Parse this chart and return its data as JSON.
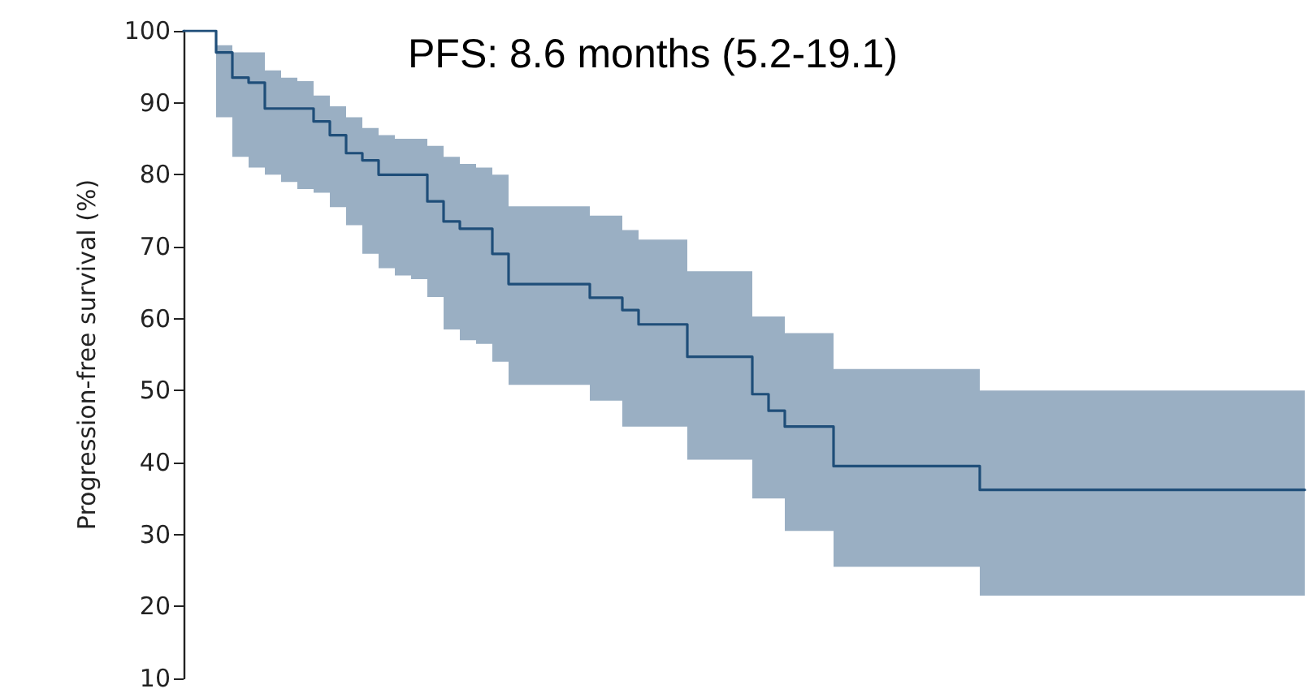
{
  "chart_data": {
    "type": "step",
    "title": "PFS: 8.6 months (5.2-19.1)",
    "ylabel": "Progression-free survival (%)",
    "categories": [
      null,
      null,
      null,
      null,
      null,
      null,
      null,
      null,
      null,
      null,
      null,
      null,
      null,
      null,
      null,
      null,
      null,
      null,
      null,
      null,
      null,
      null,
      null,
      null,
      null,
      null,
      null,
      null,
      null,
      null,
      null,
      null,
      null,
      null,
      null,
      null,
      null,
      null,
      null,
      null,
      null,
      null,
      null,
      null,
      null,
      null,
      null,
      null,
      null,
      null,
      null,
      null,
      null,
      null,
      null,
      null,
      null,
      null,
      null,
      null,
      null,
      null,
      null,
      null,
      null,
      null,
      null,
      null,
      null,
      null
    ],
    "series": [
      {
        "color": "#1f4e79",
        "values": [
          100,
          100,
          97,
          93.5,
          92.8,
          89.2,
          89.2,
          89.2,
          87.4,
          85.5,
          83,
          82,
          80,
          80,
          80,
          76.3,
          73.5,
          72.5,
          72.5,
          69,
          64.8,
          64.8,
          64.8,
          64.8,
          64.8,
          62.9,
          62.9,
          61.2,
          59.2,
          59.2,
          59.2,
          54.7,
          54.7,
          54.7,
          54.7,
          49.5,
          47.2,
          45,
          45,
          45,
          39.5,
          39.5,
          39.5,
          39.5,
          39.5,
          39.5,
          39.5,
          39.5,
          39.5,
          36.2,
          36.2,
          36.2,
          36.2,
          36.2,
          36.2,
          36.2,
          36.2,
          36.2,
          36.2,
          36.2,
          36.2,
          36.2,
          36.2,
          36.2,
          36.2,
          36.2,
          36.2,
          36.2,
          36.2,
          36.2
        ],
        "upper": [
          100,
          100,
          98,
          97,
          97,
          94.5,
          93.5,
          93,
          91,
          89.5,
          88,
          86.5,
          85.5,
          85,
          85,
          84,
          82.5,
          81.5,
          81,
          80,
          75.6,
          75.6,
          75.6,
          75.6,
          75.6,
          74.3,
          74.3,
          72.3,
          71,
          71,
          71,
          66.6,
          66.6,
          66.6,
          66.6,
          60.3,
          60.3,
          58,
          58,
          58,
          53,
          53,
          53,
          53,
          53,
          53,
          53,
          53,
          53,
          50,
          50,
          50,
          50,
          50,
          50,
          50,
          50,
          50,
          50,
          50,
          50,
          50,
          50,
          50,
          50,
          50,
          50,
          50,
          50,
          50
        ],
        "lower": [
          100,
          100,
          88,
          82.5,
          81,
          80,
          79,
          78,
          77.5,
          75.5,
          73,
          69,
          67,
          66,
          65.5,
          63,
          58.5,
          57,
          56.5,
          54,
          50.8,
          50.8,
          50.8,
          50.8,
          50.8,
          48.6,
          48.6,
          45,
          45,
          45,
          45,
          40.4,
          40.4,
          40.4,
          40.4,
          35,
          35,
          30.5,
          30.5,
          30.5,
          25.5,
          25.5,
          25.5,
          25.5,
          25.5,
          25.5,
          25.5,
          25.5,
          25.5,
          21.5,
          21.5,
          21.5,
          21.5,
          21.5,
          21.5,
          21.5,
          21.5,
          21.5,
          21.5,
          21.5,
          21.5,
          21.5,
          21.5,
          21.5,
          21.5,
          21.5,
          21.5,
          21.5,
          21.5,
          21.5
        ]
      }
    ],
    "ylim": [
      10,
      100
    ],
    "yticks": [
      10,
      20,
      30,
      40,
      50,
      60,
      70,
      80,
      90,
      100
    ],
    "tick_labels": "y",
    "grid": false,
    "marker": "none",
    "line_style": "solid"
  }
}
